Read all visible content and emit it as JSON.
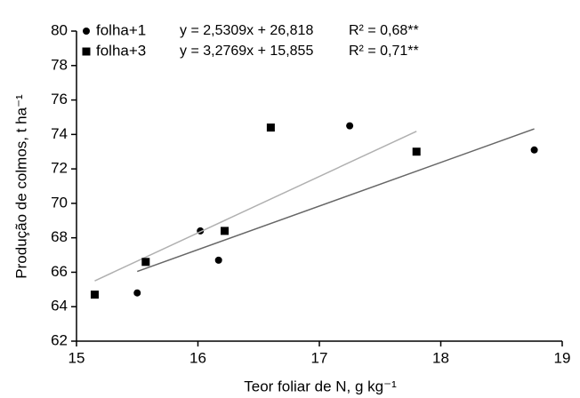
{
  "chart_data": {
    "type": "scatter",
    "xlabel": "Teor foliar de N, g kg⁻¹",
    "ylabel": "Produção de colmos, t ha⁻¹",
    "xlim": [
      15,
      19
    ],
    "xticks": [
      15,
      16,
      17,
      18,
      19
    ],
    "ylim": [
      62,
      80
    ],
    "yticks": [
      62,
      64,
      66,
      68,
      70,
      72,
      74,
      76,
      78,
      80
    ],
    "grid": false,
    "series": [
      {
        "name": "folha+1",
        "marker": "circle",
        "color": "#000000",
        "line_color": "#666666",
        "equation": "y = 2,5309x + 26,818",
        "r2": "R² = 0,68**",
        "trendline": {
          "slope": 2.5309,
          "intercept": 26.818
        },
        "x": [
          15.5,
          16.02,
          16.17,
          17.25,
          18.77
        ],
        "values": [
          64.8,
          68.4,
          66.7,
          74.5,
          73.1
        ]
      },
      {
        "name": "folha+3",
        "marker": "square",
        "color": "#000000",
        "line_color": "#b0b0b0",
        "equation": "y = 3,2769x + 15,855",
        "r2": "R² = 0,71**",
        "trendline": {
          "slope": 3.2769,
          "intercept": 15.855
        },
        "x": [
          15.15,
          15.57,
          16.22,
          16.6,
          17.8
        ],
        "values": [
          64.7,
          66.6,
          68.4,
          74.4,
          73.0
        ]
      }
    ]
  }
}
